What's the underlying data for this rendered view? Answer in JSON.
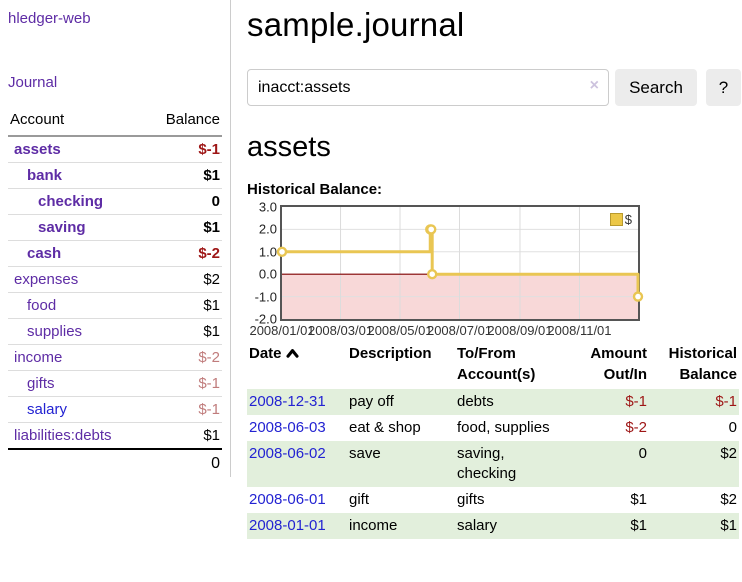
{
  "sidebar": {
    "brand": "hledger-web",
    "nav_journal": "Journal",
    "table": {
      "account_header": "Account",
      "balance_header": "Balance",
      "rows": [
        {
          "account": "assets",
          "balance": "$-1",
          "level": 1,
          "bold": true,
          "balance_color": "negative-strong"
        },
        {
          "account": "bank",
          "balance": "$1",
          "level": 2,
          "bold": true
        },
        {
          "account": "checking",
          "balance": "0",
          "level": 3,
          "bold": true
        },
        {
          "account": "saving",
          "balance": "$1",
          "level": 3,
          "bold": true
        },
        {
          "account": "cash",
          "balance": "$-2",
          "level": 2,
          "bold": true,
          "balance_color": "negative-strong"
        },
        {
          "account": "expenses",
          "balance": "$2",
          "level": 1
        },
        {
          "account": "food",
          "balance": "$1",
          "level": 2
        },
        {
          "account": "supplies",
          "balance": "$1",
          "level": 2
        },
        {
          "account": "income",
          "balance": "$-2",
          "level": 1,
          "balance_color": "negative-soft"
        },
        {
          "account": "gifts",
          "balance": "$-1",
          "level": 2,
          "balance_color": "negative-soft"
        },
        {
          "account": "salary",
          "balance": "$-1",
          "level": 2,
          "link_color": "blue",
          "balance_color": "negative-soft"
        },
        {
          "account": "liabilities:debts",
          "balance": "$1",
          "level": 1
        }
      ],
      "total": "0"
    }
  },
  "main": {
    "title": "sample.journal",
    "search": {
      "value": "inacct:assets",
      "clear_icon": "×",
      "button_label": "Search",
      "help_label": "?"
    },
    "account_heading": "assets",
    "chart_label": "Historical Balance:"
  },
  "chart_data": {
    "type": "line",
    "step": true,
    "title": "Historical Balance",
    "series": [
      {
        "name": "$",
        "color": "#e9c653",
        "x": [
          "2008-01-01",
          "2008-06-01",
          "2008-06-02",
          "2008-06-03",
          "2008-12-31"
        ],
        "x_days": [
          0,
          152,
          153,
          154,
          365
        ],
        "y": [
          1,
          2,
          2,
          0,
          -1
        ]
      }
    ],
    "ylim": [
      -2,
      3
    ],
    "yticks": [
      3,
      2,
      1,
      0,
      -1,
      -2
    ],
    "ytick_labels": [
      "3.0",
      "2.0",
      "1.0",
      "0.0",
      "-1.0",
      "-2.0"
    ],
    "xticks": [
      "2008/01/01",
      "2008/03/01",
      "2008/05/01",
      "2008/07/01",
      "2008/09/01",
      "2008/11/01"
    ],
    "xtick_days": [
      0,
      60,
      121,
      182,
      244,
      305
    ],
    "xrange_days": [
      0,
      365
    ],
    "grid": true,
    "negative_fill": "#f8d8d8",
    "zero_line_color": "#7f0000",
    "legend": {
      "label": "$",
      "position": "top-right"
    }
  },
  "register": {
    "headers": {
      "date": "Date",
      "description": "Description",
      "account": [
        "To/From",
        "Account(s)"
      ],
      "amount": [
        "Amount",
        "Out/In"
      ],
      "balance": [
        "Historical",
        "Balance"
      ]
    },
    "rows": [
      {
        "date": "2008-12-31",
        "description": "pay off",
        "accounts": "debts",
        "amount": "$-1",
        "amount_negative": true,
        "balance": "$-1",
        "balance_negative": true
      },
      {
        "date": "2008-06-03",
        "description": "eat & shop",
        "accounts": "food, supplies",
        "amount": "$-2",
        "amount_negative": true,
        "balance": "0",
        "balance_negative": false
      },
      {
        "date": "2008-06-02",
        "description": "save",
        "accounts": "saving, checking",
        "amount": "0",
        "amount_negative": false,
        "balance": "$2",
        "balance_negative": false
      },
      {
        "date": "2008-06-01",
        "description": "gift",
        "accounts": "gifts",
        "amount": "$1",
        "amount_negative": false,
        "balance": "$2",
        "balance_negative": false
      },
      {
        "date": "2008-01-01",
        "description": "income",
        "accounts": "salary",
        "amount": "$1",
        "amount_negative": false,
        "balance": "$1",
        "balance_negative": false
      }
    ]
  },
  "colors": {
    "link_purple": "#5e2ca5",
    "link_blue": "#2323d2",
    "negative_strong": "#9e1616",
    "negative_soft": "#c07c7c",
    "row_green": "#e2efdc",
    "chart_gold": "#e9c653",
    "chart_negative_fill": "#f8d8d8",
    "chart_zero_line": "#7f0000",
    "button_bg": "#ececec"
  }
}
